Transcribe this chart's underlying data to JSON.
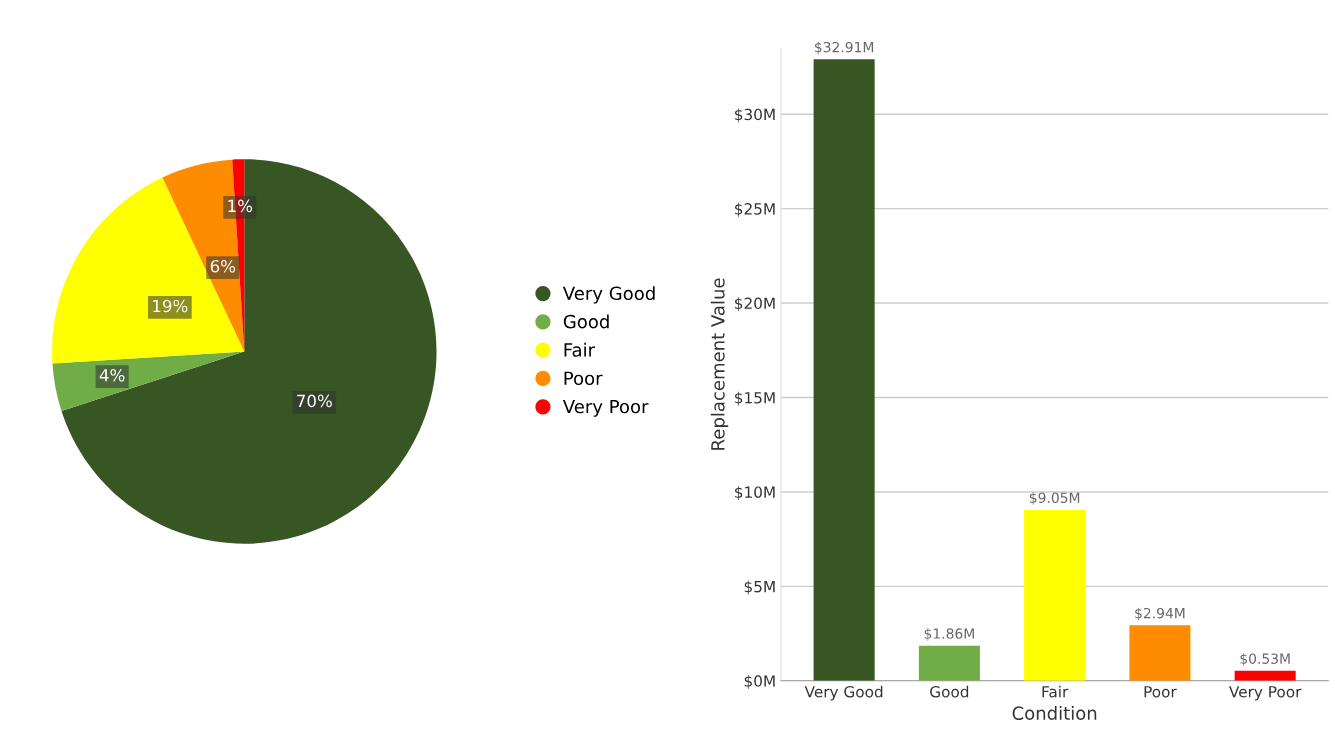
{
  "chart_data": [
    {
      "type": "pie",
      "categories": [
        "Very Good",
        "Good",
        "Fair",
        "Poor",
        "Very Poor"
      ],
      "values": [
        70,
        4,
        19,
        6,
        1
      ],
      "colors": [
        "#375623",
        "#70ad47",
        "#ffff00",
        "#ff8c00",
        "#ff0000"
      ],
      "value_labels": [
        "70%",
        "4%",
        "19%",
        "6%",
        "1%"
      ],
      "legend": "right"
    },
    {
      "type": "bar",
      "categories": [
        "Very Good",
        "Good",
        "Fair",
        "Poor",
        "Very Poor"
      ],
      "values": [
        32.91,
        1.86,
        9.05,
        2.94,
        0.53
      ],
      "colors": [
        "#375623",
        "#70ad47",
        "#ffff00",
        "#ff8c00",
        "#ff0000"
      ],
      "value_labels": [
        "$32.91M",
        "$1.86M",
        "$9.05M",
        "$2.94M",
        "$0.53M"
      ],
      "xlabel": "Condition",
      "ylabel": "Replacement Value",
      "ylim": [
        0,
        33.5
      ],
      "yticks": [
        {
          "value": 0,
          "label": "$0M"
        },
        {
          "value": 5,
          "label": "$5M"
        },
        {
          "value": 10,
          "label": "$10M"
        },
        {
          "value": 15,
          "label": "$15M"
        },
        {
          "value": 20,
          "label": "$20M"
        },
        {
          "value": 25,
          "label": "$25M"
        },
        {
          "value": 30,
          "label": "$30M"
        }
      ],
      "grid": "y"
    }
  ]
}
